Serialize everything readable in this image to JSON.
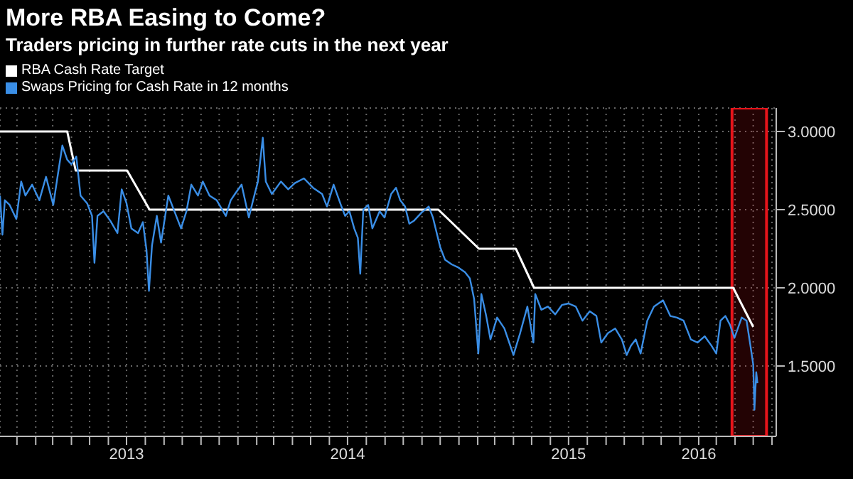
{
  "chart_data": {
    "type": "line",
    "title": "More RBA Easing to Come?",
    "subtitle": "Traders pricing in further rate cuts in the next year",
    "legend": "top left",
    "grid": true,
    "xlim": [
      "2012-12-04",
      "2016-06-08"
    ],
    "xticks": [
      {
        "value": "2013-01-01",
        "label": null
      },
      {
        "value": "2013-02-01",
        "label": null
      },
      {
        "value": "2013-03-01",
        "label": null
      },
      {
        "value": "2013-04-01",
        "label": null
      },
      {
        "value": "2013-05-01",
        "label": null
      },
      {
        "value": "2013-06-01",
        "label": null
      },
      {
        "value": "2013-07-01",
        "label": "2013"
      },
      {
        "value": "2013-08-01",
        "label": null
      },
      {
        "value": "2013-09-01",
        "label": null
      },
      {
        "value": "2013-10-01",
        "label": null
      },
      {
        "value": "2013-11-01",
        "label": null
      },
      {
        "value": "2013-12-01",
        "label": null
      },
      {
        "value": "2014-01-01",
        "label": null
      },
      {
        "value": "2014-02-01",
        "label": null
      },
      {
        "value": "2014-03-01",
        "label": null
      },
      {
        "value": "2014-04-01",
        "label": null
      },
      {
        "value": "2014-05-01",
        "label": null
      },
      {
        "value": "2014-06-01",
        "label": null
      },
      {
        "value": "2014-07-01",
        "label": "2014"
      },
      {
        "value": "2014-08-01",
        "label": null
      },
      {
        "value": "2014-09-01",
        "label": null
      },
      {
        "value": "2014-10-01",
        "label": null
      },
      {
        "value": "2014-11-01",
        "label": null
      },
      {
        "value": "2014-12-01",
        "label": null
      },
      {
        "value": "2015-01-01",
        "label": null
      },
      {
        "value": "2015-02-01",
        "label": null
      },
      {
        "value": "2015-03-01",
        "label": null
      },
      {
        "value": "2015-04-01",
        "label": null
      },
      {
        "value": "2015-05-01",
        "label": null
      },
      {
        "value": "2015-06-01",
        "label": null
      },
      {
        "value": "2015-07-01",
        "label": "2015"
      },
      {
        "value": "2015-08-01",
        "label": null
      },
      {
        "value": "2015-09-01",
        "label": null
      },
      {
        "value": "2015-10-01",
        "label": null
      },
      {
        "value": "2015-11-01",
        "label": null
      },
      {
        "value": "2015-12-01",
        "label": null
      },
      {
        "value": "2016-01-01",
        "label": null
      },
      {
        "value": "2016-02-01",
        "label": "2016"
      },
      {
        "value": "2016-03-01",
        "label": null
      },
      {
        "value": "2016-04-01",
        "label": null
      },
      {
        "value": "2016-05-01",
        "label": null
      },
      {
        "value": "2016-06-01",
        "label": null
      }
    ],
    "ylim": [
      1.05,
      3.15
    ],
    "yticks": [
      {
        "value": 1.5,
        "label": "1.5000"
      },
      {
        "value": 2,
        "label": "2.0000"
      },
      {
        "value": 2.5,
        "label": "2.5000"
      },
      {
        "value": 3,
        "label": "3.0000"
      }
    ],
    "bands": [
      {
        "axis": "x",
        "from": "2016-03-27",
        "to": "2016-05-23",
        "color": "#e8141b"
      }
    ],
    "series": [
      {
        "name": "RBA Cash Rate Target",
        "color": "#ffffff",
        "x": [
          "2012-12-04",
          "2013-03-25",
          "2013-04-08",
          "2013-05-08",
          "2013-07-02",
          "2013-08-08",
          "2014-11-28",
          "2015-02-03",
          "2015-04-05",
          "2015-05-05",
          "2016-03-29",
          "2016-05-01"
        ],
        "values": [
          3.0,
          3.0,
          2.75,
          2.75,
          2.75,
          2.5,
          2.5,
          2.25,
          2.25,
          2.0,
          2.0,
          1.75
        ]
      },
      {
        "name": "Swaps Pricing for Cash Rate in 12 months",
        "color": "#3a8ee6",
        "x": [
          "2012-12-04",
          "2012-12-08",
          "2012-12-12",
          "2012-12-20",
          "2012-12-31",
          "2013-01-08",
          "2013-01-15",
          "2013-01-26",
          "2013-02-07",
          "2013-02-18",
          "2013-03-02",
          "2013-03-09",
          "2013-03-17",
          "2013-03-25",
          "2013-04-01",
          "2013-04-09",
          "2013-04-16",
          "2013-04-27",
          "2013-05-05",
          "2013-05-09",
          "2013-05-14",
          "2013-05-24",
          "2013-06-04",
          "2013-06-16",
          "2013-06-23",
          "2013-07-01",
          "2013-07-09",
          "2013-07-20",
          "2013-07-28",
          "2013-08-03",
          "2013-08-07",
          "2013-08-12",
          "2013-08-20",
          "2013-08-27",
          "2013-09-08",
          "2013-09-19",
          "2013-09-29",
          "2013-10-08",
          "2013-10-16",
          "2013-10-27",
          "2013-11-04",
          "2013-11-15",
          "2013-11-27",
          "2013-12-12",
          "2013-12-20",
          "2013-12-27",
          "2014-01-07",
          "2014-01-19",
          "2014-01-26",
          "2014-02-03",
          "2014-02-11",
          "2014-02-16",
          "2014-02-26",
          "2014-03-13",
          "2014-03-25",
          "2014-04-05",
          "2014-04-20",
          "2014-05-05",
          "2014-05-20",
          "2014-05-28",
          "2014-06-08",
          "2014-06-20",
          "2014-06-27",
          "2014-07-04",
          "2014-07-12",
          "2014-07-18",
          "2014-07-22",
          "2014-07-27",
          "2014-08-04",
          "2014-08-11",
          "2014-08-23",
          "2014-08-31",
          "2014-09-11",
          "2014-09-19",
          "2014-09-26",
          "2014-10-04",
          "2014-10-11",
          "2014-10-19",
          "2014-10-31",
          "2014-11-12",
          "2014-11-19",
          "2014-12-01",
          "2014-12-09",
          "2014-12-20",
          "2014-12-31",
          "2015-01-11",
          "2015-01-19",
          "2015-01-26",
          "2015-02-02",
          "2015-02-07",
          "2015-02-15",
          "2015-02-22",
          "2015-03-05",
          "2015-03-17",
          "2015-03-25",
          "2015-04-01",
          "2015-04-12",
          "2015-04-24",
          "2015-05-04",
          "2015-05-07",
          "2015-05-17",
          "2015-05-28",
          "2015-06-09",
          "2015-06-20",
          "2015-07-01",
          "2015-07-13",
          "2015-07-24",
          "2015-08-05",
          "2015-08-16",
          "2015-08-24",
          "2015-09-04",
          "2015-09-16",
          "2015-09-27",
          "2015-10-05",
          "2015-10-12",
          "2015-10-20",
          "2015-10-28",
          "2015-11-08",
          "2015-11-19",
          "2015-12-04",
          "2015-12-16",
          "2015-12-27",
          "2016-01-07",
          "2016-01-19",
          "2016-01-30",
          "2016-02-11",
          "2016-02-22",
          "2016-03-01",
          "2016-03-08",
          "2016-03-16",
          "2016-03-24",
          "2016-03-31",
          "2016-04-12",
          "2016-04-20",
          "2016-04-26",
          "2016-05-01",
          "2016-05-03",
          "2016-05-06",
          "2016-05-08"
        ],
        "values": [
          2.59,
          2.34,
          2.56,
          2.53,
          2.44,
          2.68,
          2.59,
          2.66,
          2.56,
          2.71,
          2.53,
          2.71,
          2.91,
          2.82,
          2.79,
          2.84,
          2.59,
          2.54,
          2.46,
          2.16,
          2.46,
          2.49,
          2.43,
          2.35,
          2.63,
          2.54,
          2.38,
          2.35,
          2.42,
          2.24,
          1.98,
          2.27,
          2.46,
          2.29,
          2.59,
          2.48,
          2.38,
          2.49,
          2.66,
          2.59,
          2.68,
          2.59,
          2.56,
          2.46,
          2.56,
          2.6,
          2.66,
          2.45,
          2.56,
          2.68,
          2.96,
          2.68,
          2.6,
          2.68,
          2.63,
          2.67,
          2.7,
          2.64,
          2.6,
          2.52,
          2.66,
          2.53,
          2.46,
          2.49,
          2.38,
          2.32,
          2.09,
          2.5,
          2.53,
          2.38,
          2.49,
          2.45,
          2.6,
          2.64,
          2.56,
          2.52,
          2.41,
          2.43,
          2.48,
          2.52,
          2.45,
          2.26,
          2.18,
          2.15,
          2.13,
          2.1,
          2.06,
          1.93,
          1.58,
          1.96,
          1.82,
          1.67,
          1.81,
          1.74,
          1.65,
          1.57,
          1.71,
          1.88,
          1.65,
          1.96,
          1.86,
          1.88,
          1.83,
          1.89,
          1.9,
          1.88,
          1.79,
          1.85,
          1.82,
          1.65,
          1.71,
          1.74,
          1.67,
          1.57,
          1.63,
          1.67,
          1.58,
          1.79,
          1.88,
          1.92,
          1.82,
          1.81,
          1.79,
          1.67,
          1.65,
          1.69,
          1.63,
          1.58,
          1.79,
          1.82,
          1.76,
          1.68,
          1.81,
          1.79,
          1.64,
          1.51,
          1.22,
          1.46,
          1.39
        ]
      }
    ]
  }
}
